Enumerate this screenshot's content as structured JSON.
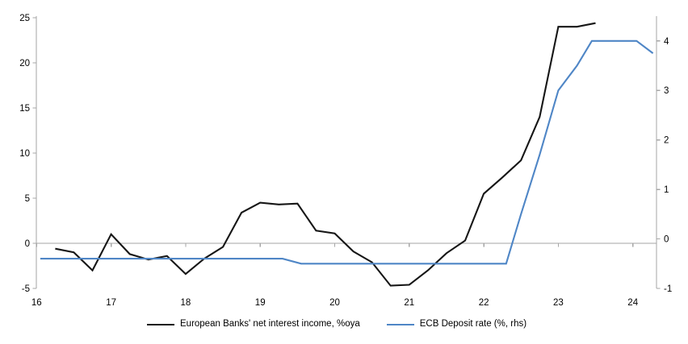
{
  "chart_data": {
    "type": "line",
    "title": "",
    "legend_position": "bottom",
    "grid": "zero-line-only",
    "x_axis": {
      "tick_values": [
        16,
        17,
        18,
        19,
        20,
        21,
        22,
        23,
        24
      ],
      "tick_labels": [
        "16",
        "17",
        "18",
        "19",
        "20",
        "21",
        "22",
        "23",
        "24"
      ],
      "range": [
        16,
        24.32
      ]
    },
    "left_axis": {
      "tick_values": [
        -5,
        0,
        5,
        10,
        15,
        20,
        25
      ],
      "tick_labels": [
        "-5",
        "0",
        "5",
        "10",
        "15",
        "20",
        "25"
      ],
      "range": [
        -5,
        25.2
      ]
    },
    "right_axis": {
      "tick_values": [
        -1,
        0,
        1,
        2,
        3,
        4
      ],
      "tick_labels": [
        "-1",
        "0",
        "1",
        "2",
        "3",
        "4"
      ],
      "range": [
        -1,
        4.5
      ]
    },
    "series": [
      {
        "name": "European Banks' net interest income, %oya",
        "axis": "left",
        "color": "#161616",
        "x": [
          16.25,
          16.5,
          16.75,
          17.0,
          17.25,
          17.5,
          17.75,
          18.0,
          18.25,
          18.5,
          18.75,
          19.0,
          19.25,
          19.5,
          19.75,
          20.0,
          20.25,
          20.5,
          20.75,
          21.0,
          21.25,
          21.5,
          21.75,
          22.0,
          22.25,
          22.5,
          22.75,
          23.0,
          23.25,
          23.5
        ],
        "values": [
          -0.6,
          -1.0,
          -3.0,
          1.0,
          -1.2,
          -1.8,
          -1.4,
          -3.4,
          -1.7,
          -0.4,
          3.4,
          4.5,
          4.3,
          4.4,
          1.4,
          1.1,
          -0.9,
          -2.1,
          -4.7,
          -4.6,
          -3.0,
          -1.1,
          0.3,
          5.5,
          7.3,
          9.2,
          14.0,
          24.0,
          24.0,
          24.4
        ]
      },
      {
        "name": "ECB Deposit rate (%, rhs)",
        "axis": "right",
        "color": "#4f86c6",
        "x": [
          16.05,
          19.3,
          19.55,
          22.3,
          22.5,
          22.75,
          23.0,
          23.25,
          23.45,
          24.05,
          24.27
        ],
        "values": [
          -0.4,
          -0.4,
          -0.5,
          -0.5,
          0.5,
          1.7,
          3.0,
          3.5,
          4.0,
          4.0,
          3.75
        ]
      }
    ]
  },
  "legend": {
    "item1_label": "European Banks' net interest income, %oya",
    "item2_label": "ECB Deposit rate (%, rhs)"
  },
  "colors": {
    "axis_gray": "#a6a6a6",
    "series_black": "#161616",
    "series_blue": "#4f86c6",
    "background": "#ffffff"
  }
}
